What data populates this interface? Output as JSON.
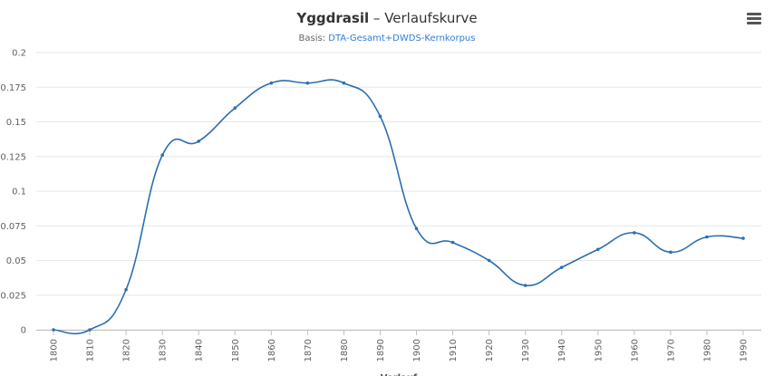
{
  "title": {
    "term": "Yggdrasil",
    "separator": " – ",
    "suffix": "Verlaufskurve"
  },
  "subtitle": {
    "prefix": "Basis: ",
    "corpus_link": "DTA-Gesamt+DWDS-Kernkorpus"
  },
  "menu": {
    "icon": "hamburger-menu-icon"
  },
  "chart_data": {
    "type": "line",
    "x": [
      1800,
      1810,
      1820,
      1830,
      1840,
      1850,
      1860,
      1870,
      1880,
      1890,
      1900,
      1910,
      1920,
      1930,
      1940,
      1950,
      1960,
      1970,
      1980,
      1990
    ],
    "series": [
      {
        "values": [
          0,
          0,
          0.029,
          0.126,
          0.136,
          0.16,
          0.178,
          0.178,
          0.178,
          0.154,
          0.073,
          0.063,
          0.05,
          0.032,
          0.045,
          0.058,
          0.07,
          0.056,
          0.067,
          0.066
        ],
        "color": "#2b6fb0"
      }
    ],
    "ylim": [
      0,
      0.2
    ],
    "yticks": [
      "0",
      "0.025",
      "0.05",
      "0.075",
      "0.1",
      "0.125",
      "0.15",
      "0.175",
      "0.2"
    ],
    "xticks": [
      "1800",
      "1810",
      "1820",
      "1830",
      "1840",
      "1850",
      "1860",
      "1870",
      "1880",
      "1890",
      "1900",
      "1910",
      "1920",
      "1930",
      "1940",
      "1950",
      "1960",
      "1970",
      "1980",
      "1990"
    ],
    "xlabel": "Verlauf",
    "grid": true
  }
}
